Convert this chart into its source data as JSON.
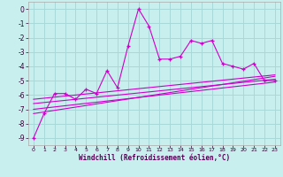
{
  "xlabel": "Windchill (Refroidissement éolien,°C)",
  "bg_color": "#c8eeed",
  "grid_color": "#a8d8d8",
  "line_color": "#cc00cc",
  "xlim": [
    -0.5,
    23.5
  ],
  "ylim": [
    -9.5,
    0.5
  ],
  "xticks": [
    0,
    1,
    2,
    3,
    4,
    5,
    6,
    7,
    8,
    9,
    10,
    11,
    12,
    13,
    14,
    15,
    16,
    17,
    18,
    19,
    20,
    21,
    22,
    23
  ],
  "yticks": [
    0,
    -1,
    -2,
    -3,
    -4,
    -5,
    -6,
    -7,
    -8,
    -9
  ],
  "main_series_x": [
    0,
    1,
    2,
    3,
    4,
    5,
    6,
    7,
    8,
    9,
    10,
    11,
    12,
    13,
    14,
    15,
    16,
    17,
    18,
    19,
    20,
    21,
    22,
    23
  ],
  "main_series_y": [
    -9.0,
    -7.3,
    -5.9,
    -5.9,
    -6.3,
    -5.6,
    -5.9,
    -4.3,
    -5.5,
    -2.6,
    0.0,
    -1.2,
    -3.5,
    -3.5,
    -3.3,
    -2.2,
    -2.4,
    -2.2,
    -3.8,
    -4.0,
    -4.2,
    -3.8,
    -5.0,
    -5.0
  ],
  "reg_lines": [
    {
      "x": [
        0,
        23
      ],
      "y": [
        -6.3,
        -4.6
      ]
    },
    {
      "x": [
        0,
        23
      ],
      "y": [
        -6.6,
        -4.9
      ]
    },
    {
      "x": [
        0,
        23
      ],
      "y": [
        -7.0,
        -5.1
      ]
    },
    {
      "x": [
        0,
        23
      ],
      "y": [
        -7.3,
        -4.7
      ]
    }
  ]
}
